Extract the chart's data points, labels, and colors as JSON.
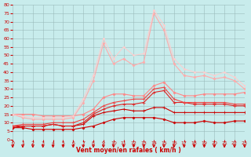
{
  "x": [
    0,
    1,
    2,
    3,
    4,
    5,
    6,
    7,
    8,
    9,
    10,
    11,
    12,
    13,
    14,
    15,
    16,
    17,
    18,
    19,
    20,
    21,
    22,
    23
  ],
  "series": [
    {
      "y": [
        7,
        7,
        6,
        6,
        6,
        6,
        6,
        7,
        8,
        10,
        12,
        13,
        13,
        13,
        13,
        12,
        10,
        10,
        10,
        11,
        10,
        10,
        11,
        11
      ],
      "color": "#cc0000",
      "lw": 0.8,
      "marker": "D",
      "ms": 1.5
    },
    {
      "y": [
        7,
        8,
        8,
        8,
        9,
        8,
        8,
        9,
        14,
        16,
        17,
        18,
        17,
        17,
        19,
        19,
        16,
        16,
        16,
        16,
        16,
        16,
        16,
        16
      ],
      "color": "#cc0000",
      "lw": 0.8,
      "marker": "+",
      "ms": 2.5
    },
    {
      "y": [
        8,
        8,
        8,
        8,
        9,
        8,
        8,
        10,
        15,
        18,
        20,
        21,
        21,
        22,
        28,
        29,
        22,
        22,
        21,
        21,
        21,
        21,
        20,
        20
      ],
      "color": "#dd2222",
      "lw": 0.8,
      "marker": "+",
      "ms": 2.5
    },
    {
      "y": [
        8,
        9,
        9,
        9,
        10,
        10,
        10,
        12,
        16,
        20,
        22,
        23,
        24,
        24,
        30,
        31,
        24,
        22,
        22,
        22,
        22,
        22,
        21,
        21
      ],
      "color": "#ee4444",
      "lw": 0.8,
      "marker": "+",
      "ms": 2.5
    },
    {
      "y": [
        15,
        15,
        15,
        14,
        14,
        14,
        14,
        15,
        18,
        25,
        27,
        27,
        26,
        26,
        32,
        34,
        28,
        26,
        26,
        27,
        27,
        27,
        27,
        28
      ],
      "color": "#ff8888",
      "lw": 0.8,
      "marker": "D",
      "ms": 1.5
    },
    {
      "y": [
        15,
        13,
        12,
        12,
        12,
        12,
        13,
        22,
        35,
        57,
        45,
        48,
        44,
        46,
        75,
        65,
        45,
        38,
        37,
        38,
        36,
        37,
        35,
        30
      ],
      "color": "#ffaaaa",
      "lw": 0.8,
      "marker": "D",
      "ms": 1.5
    },
    {
      "y": [
        15,
        14,
        13,
        13,
        13,
        13,
        14,
        24,
        38,
        60,
        48,
        55,
        50,
        51,
        77,
        68,
        48,
        42,
        40,
        40,
        38,
        40,
        37,
        32
      ],
      "color": "#ffcccc",
      "lw": 0.7,
      "marker": "D",
      "ms": 1.2
    }
  ],
  "xlabel": "Vent moyen/en rafales ( km/h )",
  "xlim": [
    0,
    23
  ],
  "ylim": [
    0,
    80
  ],
  "yticks": [
    0,
    5,
    10,
    15,
    20,
    25,
    30,
    35,
    40,
    45,
    50,
    55,
    60,
    65,
    70,
    75,
    80
  ],
  "xticks": [
    0,
    1,
    2,
    3,
    4,
    5,
    6,
    7,
    8,
    9,
    10,
    11,
    12,
    13,
    14,
    15,
    16,
    17,
    18,
    19,
    20,
    21,
    22,
    23
  ],
  "bg_color": "#c8ecec",
  "grid_color": "#9ababa",
  "tick_color": "#cc0000",
  "label_color": "#cc0000",
  "arrow_color": "#cc0000"
}
